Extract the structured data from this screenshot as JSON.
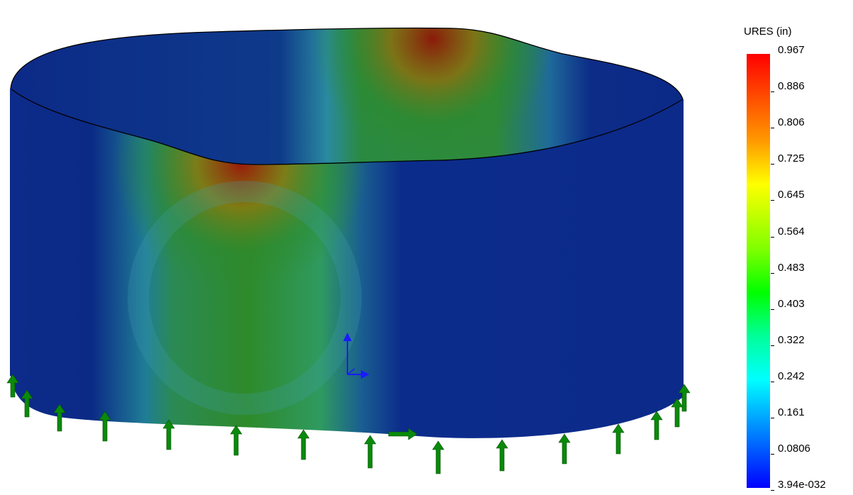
{
  "legend": {
    "title": "URES (in)",
    "labels": [
      "0.967",
      "0.886",
      "0.806",
      "0.725",
      "0.645",
      "0.564",
      "0.483",
      "0.403",
      "0.322",
      "0.242",
      "0.161",
      "0.0806",
      "3.94e-032"
    ]
  },
  "colors": {
    "max": "#ff0000",
    "min": "#0000ff",
    "fixture_arrows": "#0a8a0a",
    "triad": "#1a1aff"
  },
  "icons": [
    "fixture-arrow-icon",
    "coordinate-triad-icon"
  ]
}
